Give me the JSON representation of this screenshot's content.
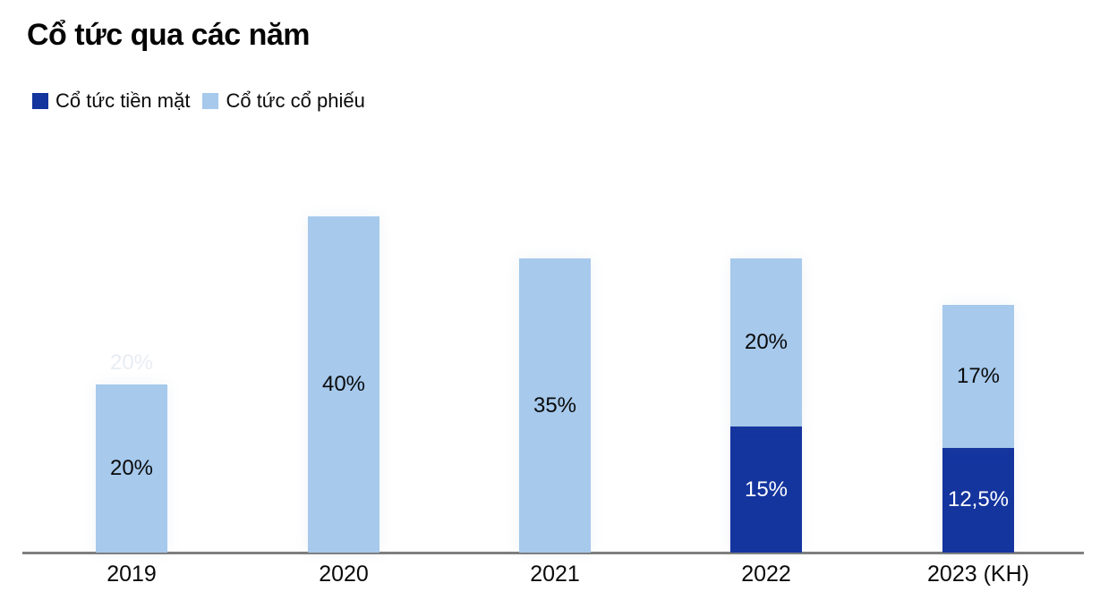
{
  "title": "Cổ tức qua các năm",
  "legend": {
    "items": [
      {
        "label": "Cổ tức tiền mặt",
        "color": "#14349E"
      },
      {
        "label": "Cổ tức cổ phiếu",
        "color": "#A6C9EC"
      }
    ],
    "position": "top-left"
  },
  "chart_data": {
    "type": "bar",
    "stacked": true,
    "title": "Cổ tức qua các năm",
    "categories": [
      "2019",
      "2020",
      "2021",
      "2022",
      "2023 (KH)"
    ],
    "series": [
      {
        "name": "Cổ tức tiền mặt",
        "color": "#14349E",
        "values": [
          0,
          0,
          0,
          15,
          12.5
        ],
        "labels": [
          "",
          "",
          "",
          "15%",
          "12,5%"
        ],
        "label_color": "#FFFFFF"
      },
      {
        "name": "Cổ tức cổ phiếu",
        "color": "#A6C9EC",
        "values": [
          20,
          40,
          35,
          20,
          17
        ],
        "labels": [
          "20%",
          "40%",
          "35%",
          "20%",
          "17%"
        ],
        "label_color": "#0a0a0a"
      }
    ],
    "totals": [
      20,
      40,
      35,
      35,
      29.5
    ],
    "xlabel": "",
    "ylabel": "",
    "ylim": [
      0,
      45
    ],
    "grid": false,
    "legend_position": "top-left",
    "ghost_label": {
      "category_index": 0,
      "text": "20%"
    }
  },
  "colors": {
    "axis_line": "#7F7F7F",
    "background": "#FFFFFF",
    "cash_dividend": "#14349E",
    "stock_dividend": "#A6C9EC"
  }
}
